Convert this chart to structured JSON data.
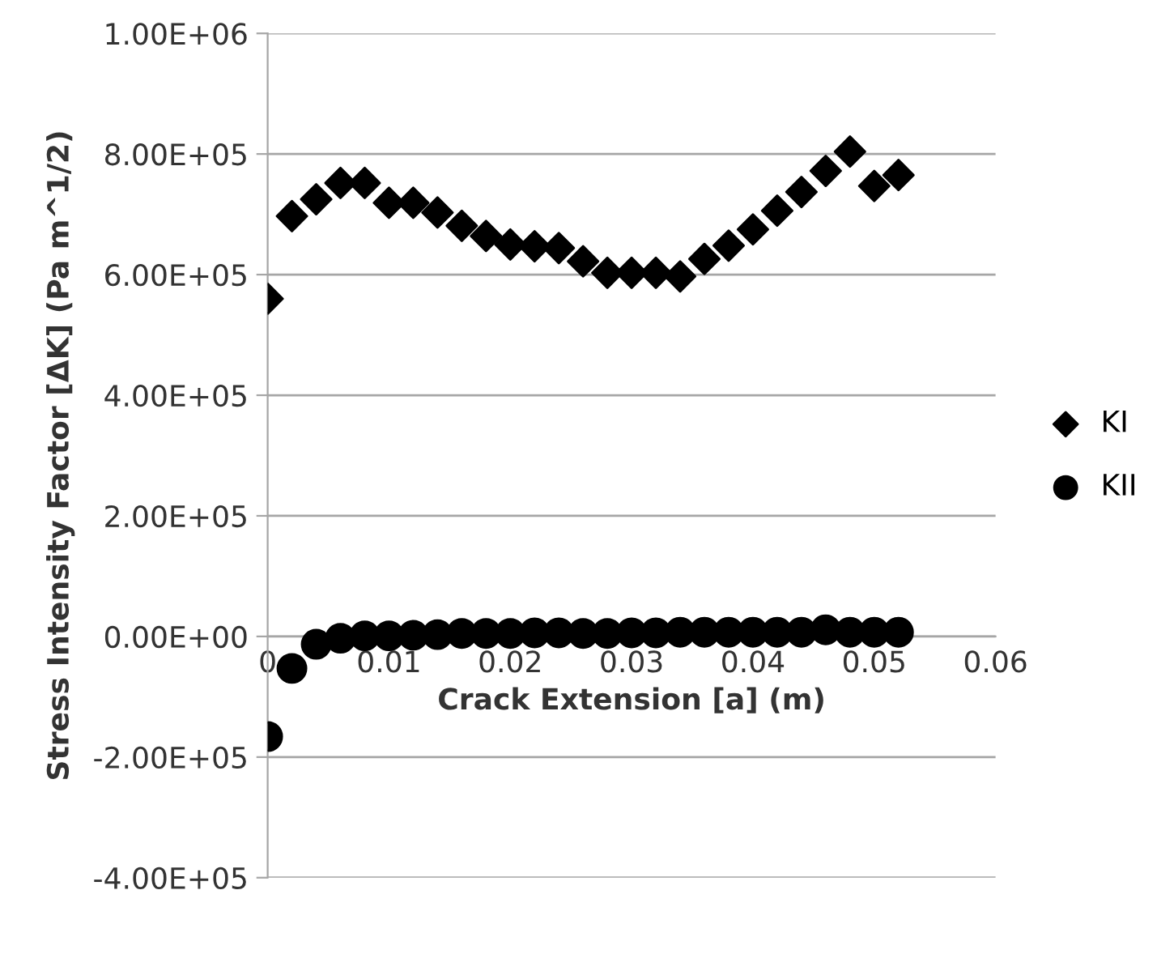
{
  "chart_data": {
    "type": "scatter",
    "xlabel": "Crack Extension [a] (m)",
    "ylabel": "Stress Intensity Factor [ΔK] (Pa m^1/2)",
    "x": [
      0,
      0.002,
      0.004,
      0.006,
      0.008,
      0.01,
      0.012,
      0.014,
      0.016,
      0.018,
      0.02,
      0.022,
      0.024,
      0.026,
      0.028,
      0.03,
      0.032,
      0.034,
      0.036,
      0.038,
      0.04,
      0.042,
      0.044,
      0.046,
      0.048,
      0.05,
      0.052
    ],
    "series": [
      {
        "name": "KI",
        "color": "#000000",
        "marker": "diamond",
        "values": [
          560000,
          697000,
          725000,
          752000,
          752000,
          719000,
          719000,
          703000,
          681000,
          664000,
          650000,
          647000,
          644000,
          622000,
          603000,
          603000,
          603000,
          597000,
          626000,
          648000,
          675000,
          706000,
          737000,
          772000,
          804000,
          747000,
          765000
        ]
      },
      {
        "name": "KII",
        "color": "#000000",
        "marker": "circle",
        "values": [
          -166000,
          -53000,
          -13000,
          -3000,
          1000,
          1000,
          2000,
          3000,
          5000,
          5000,
          5000,
          6000,
          6000,
          5000,
          5000,
          6000,
          6000,
          7000,
          7000,
          7000,
          7000,
          7000,
          7000,
          11000,
          7000,
          7000,
          7000
        ]
      }
    ],
    "xlim": [
      0,
      0.06
    ],
    "xticks": [
      0,
      0.01,
      0.02,
      0.03,
      0.04,
      0.05,
      0.06
    ],
    "ylim": [
      -400000,
      1000000
    ],
    "yticks": [
      {
        "value": -400000,
        "label": "-4.00E+05"
      },
      {
        "value": -200000,
        "label": "-2.00E+05"
      },
      {
        "value": 0,
        "label": "0.00E+00"
      },
      {
        "value": 200000,
        "label": "2.00E+05"
      },
      {
        "value": 400000,
        "label": "4.00E+05"
      },
      {
        "value": 600000,
        "label": "6.00E+05"
      },
      {
        "value": 800000,
        "label": "8.00E+05"
      },
      {
        "value": 1000000,
        "label": "1.00E+06"
      }
    ],
    "grid": "y",
    "legend": "right"
  }
}
